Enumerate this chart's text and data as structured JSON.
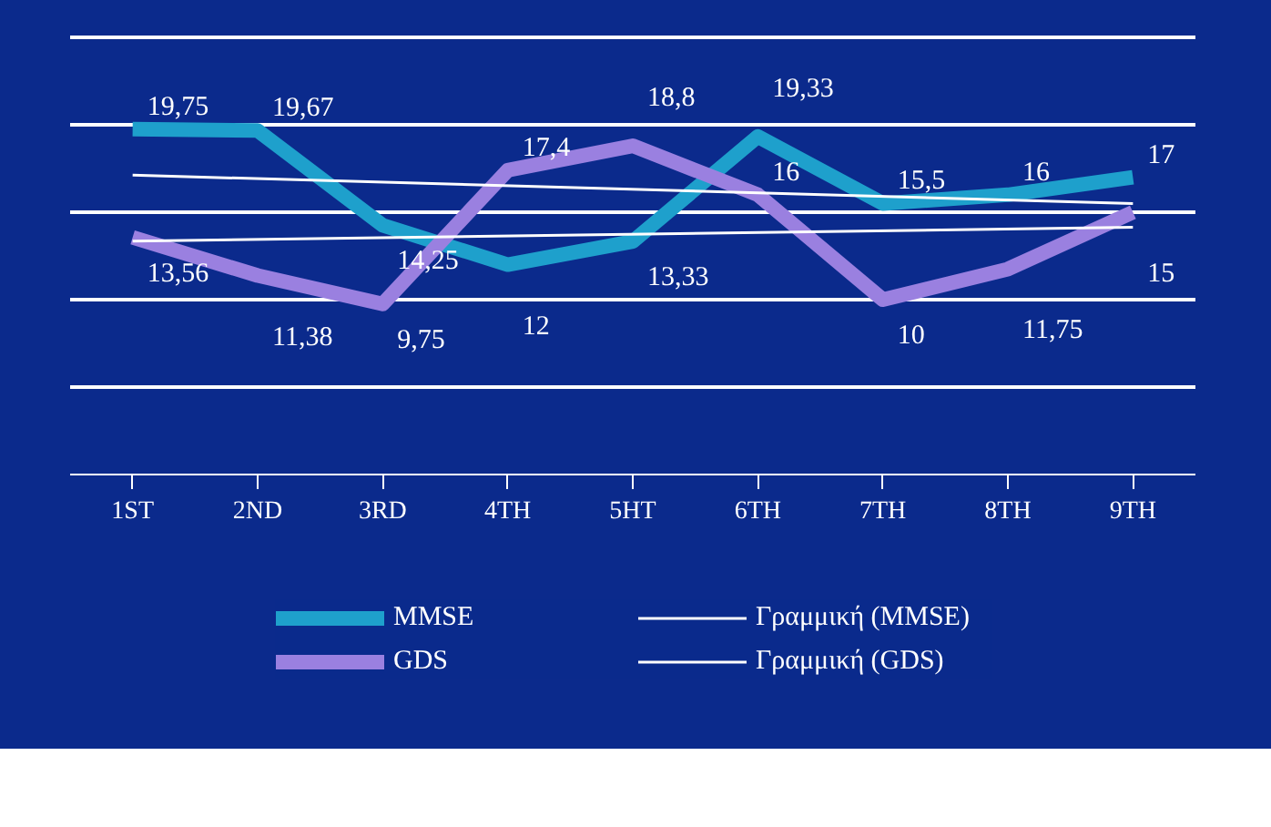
{
  "chart_data": {
    "type": "line",
    "categories": [
      "1ST",
      "2ND",
      "3RD",
      "4TH",
      "5HT",
      "6TH",
      "7TH",
      "8TH",
      "9TH"
    ],
    "series": [
      {
        "name": "MMSE",
        "color": "#1ea0cc",
        "values": [
          19.75,
          19.67,
          14.25,
          12,
          13.33,
          19.33,
          15.5,
          16,
          17
        ],
        "value_labels": [
          "19,75",
          "19,67",
          "14,25",
          "12",
          "13,33",
          "19,33",
          "15,5",
          "16",
          "17"
        ]
      },
      {
        "name": "GDS",
        "color": "#9a80e0",
        "values": [
          13.56,
          11.38,
          9.75,
          17.4,
          18.8,
          16,
          10,
          11.75,
          15
        ],
        "value_labels": [
          "13,56",
          "11,38",
          "9,75",
          "17,4",
          "18,8",
          "16",
          "10",
          "11,75",
          "15"
        ]
      },
      {
        "name": "Γραμμική (MMSE)",
        "type": "line",
        "color": "#ffffff",
        "x": [
          "1ST",
          "9TH"
        ],
        "values": [
          17.12,
          15.5
        ]
      },
      {
        "name": "Γραμμική (GDS)",
        "type": "line",
        "color": "#ffffff",
        "x": [
          "1ST",
          "9TH"
        ],
        "values": [
          13.34,
          14.14
        ]
      }
    ],
    "ylim": [
      0,
      25
    ],
    "yticks": [
      {
        "value": 0,
        "label": null
      },
      {
        "value": 5,
        "label": null
      },
      {
        "value": 10,
        "label": null
      },
      {
        "value": 15,
        "label": null
      },
      {
        "value": 20,
        "label": null
      },
      {
        "value": 25,
        "label": null
      }
    ],
    "grid": "y",
    "tick_labels": "x",
    "legend": "bottom",
    "line_style": "solid"
  }
}
